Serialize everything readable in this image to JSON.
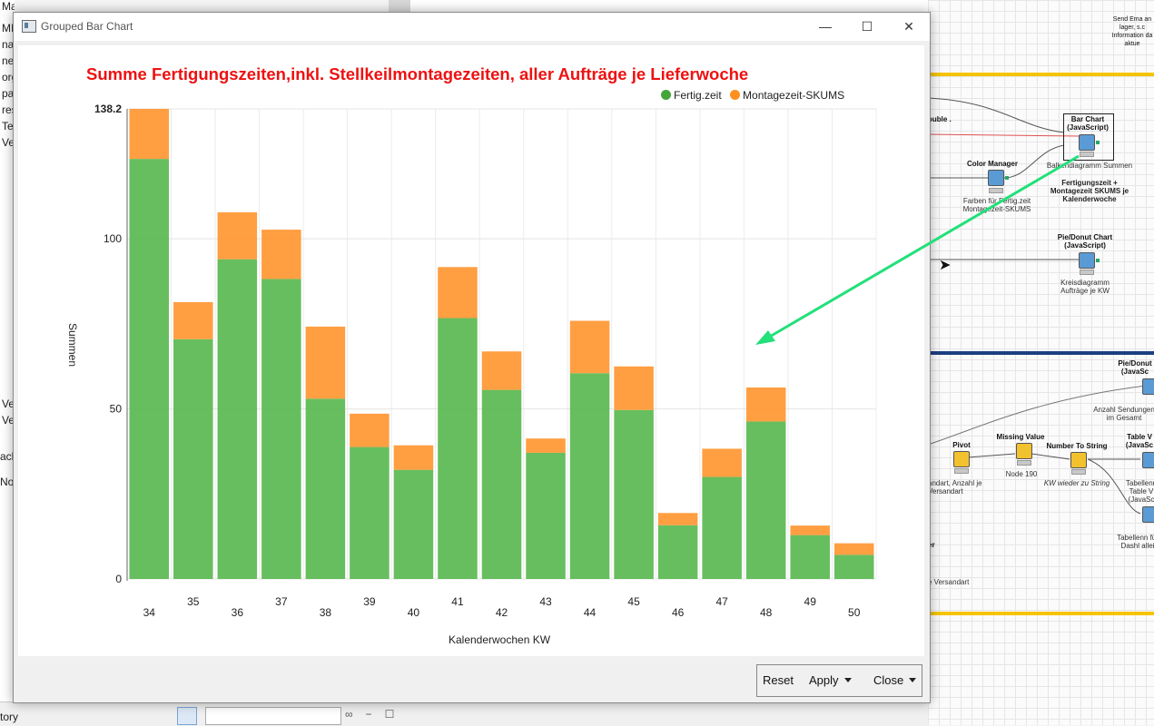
{
  "window": {
    "title": "Grouped Bar Chart",
    "minimize_glyph": "—",
    "maximize_glyph": "☐",
    "close_glyph": "✕"
  },
  "buttons": {
    "reset": "Reset",
    "apply": "Apply",
    "close": "Close"
  },
  "background": {
    "left_panel_rows": [
      "Marketingcontrolling",
      "MI",
      "na",
      "ne",
      "org",
      "pa",
      "res",
      "Tes",
      "Ve"
    ],
    "left_bottom_rows": [
      "Ve",
      "Ve",
      "ach",
      "No"
    ],
    "bottom_left_text": "tory",
    "workflow_nodes": {
      "send_email": "Send Ema an lager, s.c Information da aktue",
      "bar_chart_js": "Bar Chart (JavaScript)",
      "bar_chart_js_caption": "Balkendiagramm Summen",
      "color_manager": "Color Manager",
      "color_manager_caption": "Farben für Fertig.zeit Montagezeit-SKUMS",
      "annotation": "Fertigungszeit + Montagezeit SKUMS je Kalenderwoche",
      "double_text": "ouble .",
      "pie_chart_js": "Pie/Donut Chart (JavaScript)",
      "pie_chart_caption": "Kreisdiagramm Aufträge je KW",
      "pie_donut_2": "Pie/Donut (JavaSc",
      "pie_donut_2_caption": "Anzahl Sendungen im Gesamt",
      "pivot": "Pivot",
      "pivot_caption": "andart, Anzahl je Versandart",
      "missing_value": "Missing Value",
      "missing_value_caption": "Node 190",
      "number_to_string": "Number To String",
      "number_to_string_caption": "KW wieder zu String",
      "table_view": "Table V (JavaSc",
      "table_view_caption": "Tabellenn Table V (JavaSc",
      "table_caption_2": "Tabellenn für Dashl allei",
      "er_text": "er",
      "versandart_text": "e Versandart"
    }
  },
  "colors": {
    "fertig": "#56b74c",
    "montage": "#ff952d",
    "title": "#ee1111",
    "arrow": "#22e07a"
  },
  "chart_data": {
    "type": "bar",
    "stacked": true,
    "title": "Summe Fertigungszeiten,inkl. Stellkeilmontagezeiten, aller Aufträge je Lieferwoche",
    "xlabel": "Kalenderwochen KW",
    "ylabel": "Summen",
    "ylim": [
      0,
      138.2
    ],
    "yticks": [
      "0",
      "50",
      "100",
      "138.2"
    ],
    "grid": true,
    "legend_position": "top-right",
    "categories": [
      "34",
      "35",
      "36",
      "37",
      "38",
      "39",
      "40",
      "41",
      "42",
      "43",
      "44",
      "45",
      "46",
      "47",
      "48",
      "49",
      "50"
    ],
    "series": [
      {
        "name": "Fertig.zeit",
        "color": "#56b74c",
        "values": [
          123.5,
          70.5,
          94.0,
          88.2,
          53.0,
          38.8,
          32.1,
          76.7,
          55.6,
          37.1,
          60.5,
          49.7,
          15.8,
          30.0,
          46.3,
          12.9,
          7.1
        ]
      },
      {
        "name": "Montagezeit-SKUMS",
        "color": "#ff952d",
        "values": [
          14.7,
          10.9,
          13.8,
          14.5,
          21.2,
          9.8,
          7.2,
          15.0,
          11.3,
          4.2,
          15.4,
          12.8,
          3.6,
          8.3,
          10.0,
          2.8,
          3.4
        ]
      }
    ]
  }
}
